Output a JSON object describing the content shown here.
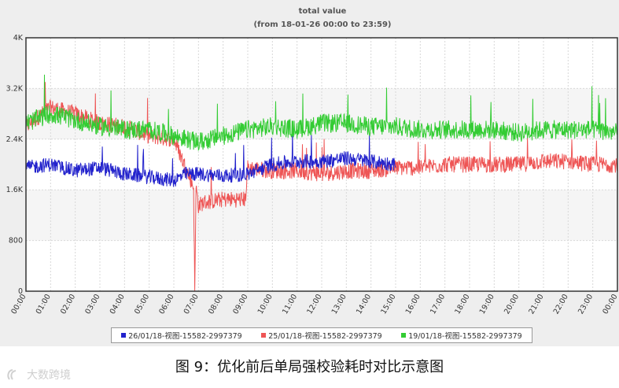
{
  "chart_data": {
    "type": "line",
    "title": "total value",
    "subtitle": "(from 18-01-26   00:00  to  23:59)",
    "ylim": [
      0,
      4000
    ],
    "y_ticks": [
      "0",
      "800",
      "1.6K",
      "2.4K",
      "3.2K",
      "4K"
    ],
    "y_tick_values": [
      0,
      800,
      1600,
      2400,
      3200,
      4000
    ],
    "x_ticks": [
      "00:00",
      "01:00",
      "02:00",
      "03:00",
      "04:00",
      "05:00",
      "06:00",
      "07:00",
      "08:00",
      "09:00",
      "10:00",
      "11:00",
      "12:00",
      "13:00",
      "14:00",
      "15:00",
      "16:00",
      "17:00",
      "18:00",
      "19:00",
      "20:00",
      "21:00",
      "22:00",
      "23:00",
      "00:00"
    ],
    "x_unit": "hour",
    "grid": true,
    "legend_position": "bottom",
    "series": [
      {
        "name": "26/01/18-视图-15582-2997379",
        "color": "#2222cc",
        "x": [
          0,
          1,
          2,
          3,
          4,
          5,
          6,
          6.5,
          7,
          8,
          9,
          10,
          11,
          12,
          13,
          14,
          15
        ],
        "y": [
          1950,
          2000,
          1900,
          1950,
          1850,
          1800,
          1750,
          1850,
          1850,
          1820,
          1850,
          2000,
          2050,
          2050,
          2100,
          2050,
          2000
        ]
      },
      {
        "name": "25/01/18-视图-15582-2997379",
        "color": "#ee5555",
        "x": [
          0,
          1,
          2,
          3,
          4,
          5,
          6,
          6.8,
          6.85,
          6.9,
          7,
          7.2,
          8,
          8.9,
          9,
          10,
          11,
          12,
          13,
          14,
          15,
          16,
          17,
          18,
          19,
          20,
          21,
          22,
          23,
          24
        ],
        "y": [
          2600,
          2900,
          2800,
          2650,
          2600,
          2450,
          2400,
          1650,
          0,
          1650,
          1350,
          1400,
          1450,
          1450,
          1950,
          1900,
          1900,
          1850,
          1900,
          1900,
          1950,
          1950,
          2000,
          2000,
          2000,
          2000,
          2050,
          2050,
          2000,
          2000
        ]
      },
      {
        "name": "19/01/18-视图-15582-2997379",
        "color": "#33cc33",
        "x": [
          0,
          1,
          2,
          3,
          4,
          5,
          6,
          7,
          8,
          9,
          10,
          11,
          12,
          13,
          14,
          15,
          16,
          17,
          18,
          19,
          20,
          21,
          22,
          23,
          24
        ],
        "y": [
          2650,
          2800,
          2700,
          2600,
          2550,
          2550,
          2450,
          2350,
          2450,
          2550,
          2600,
          2550,
          2650,
          2650,
          2600,
          2600,
          2550,
          2550,
          2550,
          2550,
          2500,
          2550,
          2550,
          2550,
          2500
        ]
      }
    ]
  },
  "legend": {
    "item1": "26/01/18-视图-15582-2997379",
    "item2": "25/01/18-视图-15582-2997379",
    "item3": "19/01/18-视图-15582-2997379"
  },
  "caption": "图 9：优化前后单局强校验耗时对比示意图",
  "watermark": "大数跨境",
  "colors": {
    "plot_bg": "#ffffff",
    "plot_bg_alt": "#f5f5f5",
    "frame": "#333333",
    "grid": "#d8d8d8"
  }
}
